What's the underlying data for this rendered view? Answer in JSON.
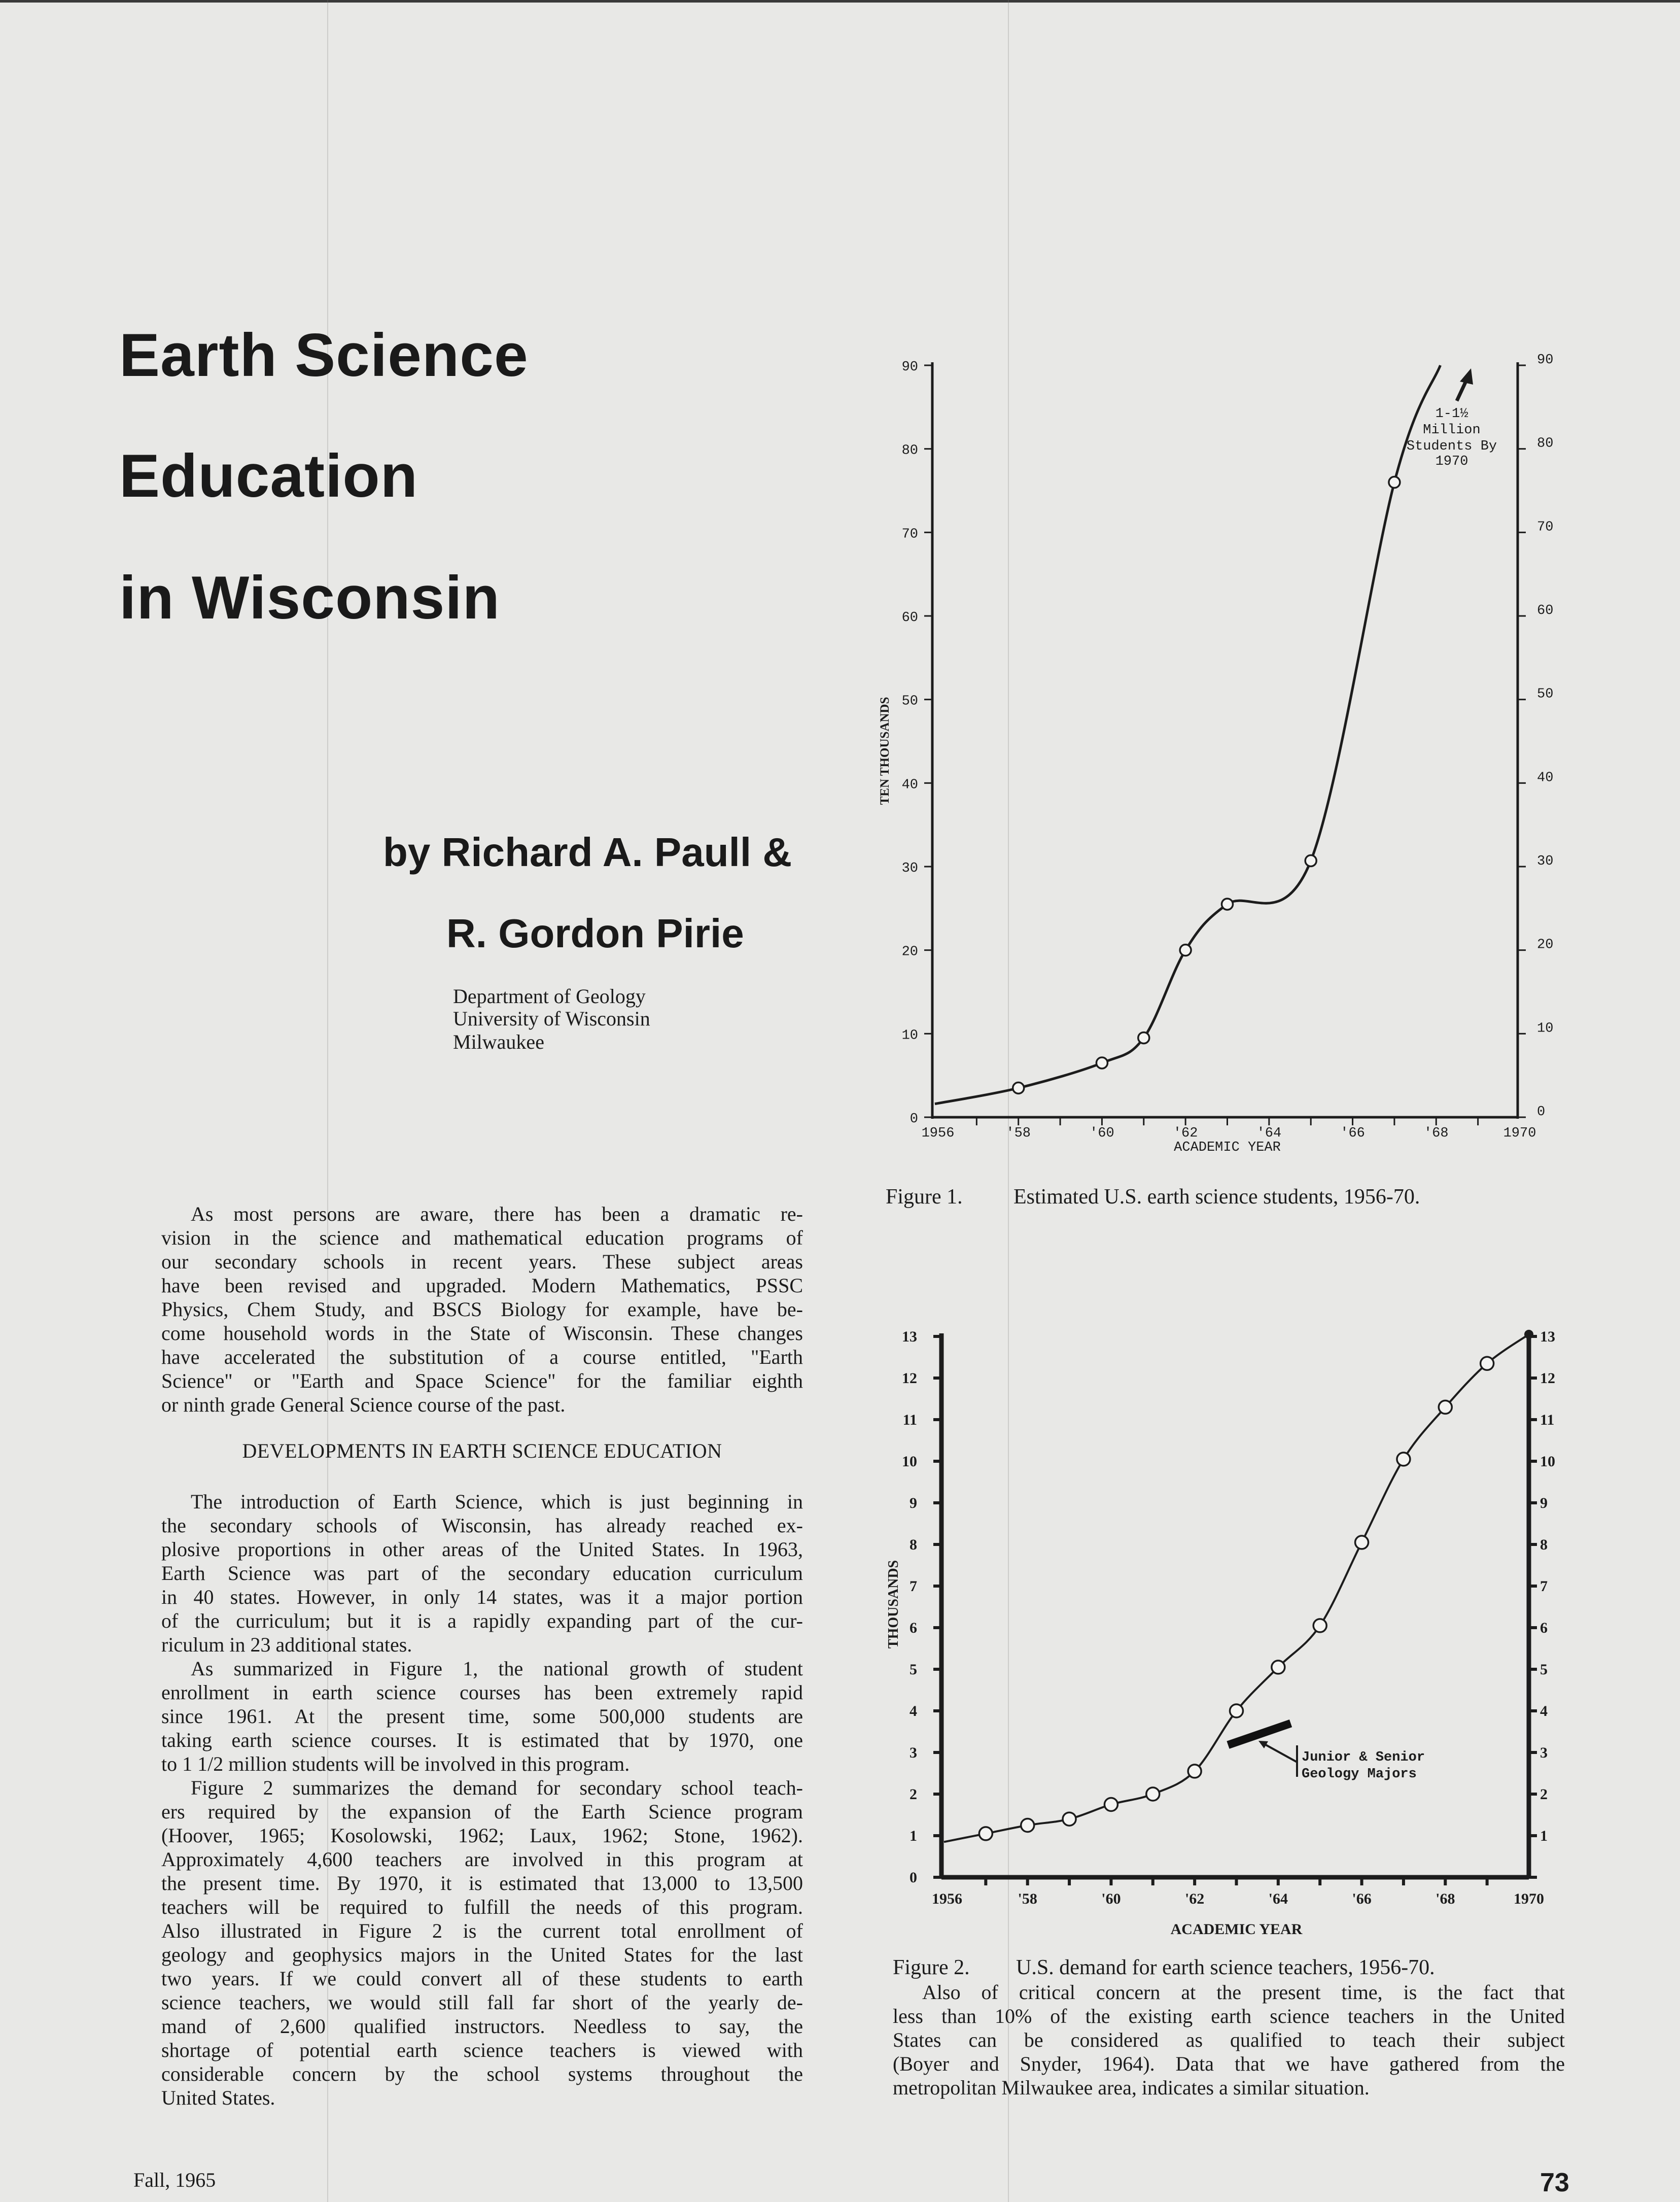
{
  "article": {
    "title_lines": [
      "Earth Science",
      "Education",
      "in Wisconsin"
    ],
    "byline_1": "by Richard A. Paull &",
    "byline_2": "R. Gordon Pirie",
    "affiliation": [
      "Department of Geology",
      "University of Wisconsin",
      "Milwaukee"
    ]
  },
  "body": {
    "intro": {
      "lines": [
        "As most persons are aware, there has been a dramatic re-",
        "vision in the science and mathematical education programs of",
        "our secondary schools in recent years. These subject areas",
        "have been revised and upgraded. Modern Mathematics, PSSC",
        "Physics, Chem Study, and BSCS Biology for example, have be-",
        "come household words in the State of Wisconsin. These changes",
        "have accelerated the substitution of a course entitled, \"Earth",
        "Science\" or \"Earth and Space Science\" for the familiar eighth",
        "or ninth grade General Science course of the past."
      ]
    },
    "section_heading": "DEVELOPMENTS IN EARTH SCIENCE EDUCATION",
    "paragraphs": [
      {
        "lines": [
          "The introduction of Earth Science, which is just beginning in",
          "the secondary schools of Wisconsin, has already reached ex-",
          "plosive proportions in other areas of the United States. In 1963,",
          "Earth Science was part of the secondary education curriculum",
          "in 40 states. However, in only 14 states, was it a major portion",
          "of the curriculum; but it is a rapidly expanding part of the cur-",
          "riculum in 23 additional states."
        ]
      },
      {
        "lines": [
          "As summarized in Figure 1, the national growth of student",
          "enrollment in earth science courses has been extremely rapid",
          "since 1961. At the present time, some 500,000 students are",
          "taking earth science courses. It is estimated that by 1970, one",
          "to 1 1/2 million students will be involved in this program."
        ]
      },
      {
        "lines": [
          "Figure 2 summarizes the demand for secondary school teach-",
          "ers required by the expansion of the Earth Science program",
          "(Hoover, 1965; Kosolowski, 1962; Laux, 1962; Stone, 1962).",
          "Approximately 4,600 teachers are involved in this program at",
          "the present time. By 1970, it is estimated that 13,000 to 13,500",
          "teachers will be required to fulfill the needs of this program.",
          "Also illustrated in Figure 2 is the current total enrollment of",
          "geology and geophysics majors in the United States for the last",
          "two years. If we could convert all of these students to earth",
          "science teachers, we would still fall far short of the yearly de-",
          "mand of 2,600 qualified instructors. Needless to say, the",
          "shortage of potential earth science teachers is viewed with",
          "considerable concern by the school systems throughout the",
          "United States."
        ]
      }
    ],
    "right_paragraph": {
      "lines": [
        "Also of critical concern at the present time, is the fact that",
        "less than 10% of the existing earth science teachers in the United",
        "States can be considered as qualified to teach their subject",
        "(Boyer and Snyder, 1964). Data that we have gathered from the",
        "metropolitan Milwaukee area, indicates a similar situation."
      ]
    }
  },
  "figures": [
    {
      "label": "Figure 1.",
      "caption": "Estimated U.S. earth science students, 1956-70."
    },
    {
      "label": "Figure 2.",
      "caption": "U.S. demand for earth science teachers, 1956-70."
    }
  ],
  "footer": {
    "issue": "Fall, 1965",
    "page_number": "73"
  },
  "chart_data": [
    {
      "type": "line",
      "title": "Estimated U.S. earth science students, 1956-70",
      "xlabel": "ACADEMIC YEAR",
      "ylabel": "TEN THOUSANDS",
      "xlim": [
        1956,
        1970
      ],
      "ylim": [
        0,
        90
      ],
      "x_tick_labels": [
        {
          "year": 1956,
          "label": "1956"
        },
        {
          "year": 1958,
          "label": "'58"
        },
        {
          "year": 1960,
          "label": "'60"
        },
        {
          "year": 1962,
          "label": "'62"
        },
        {
          "year": 1964,
          "label": "'64"
        },
        {
          "year": 1966,
          "label": "'66"
        },
        {
          "year": 1968,
          "label": "'68"
        },
        {
          "year": 1970,
          "label": "1970"
        }
      ],
      "y_ticks_left": [
        "0",
        "10",
        "20",
        "30",
        "40",
        "50",
        "60",
        "70",
        "80",
        "90"
      ],
      "y_ticks_right": [
        "0",
        "10",
        "20",
        "30",
        "40",
        "50",
        "60",
        "70",
        "80",
        "90"
      ],
      "series": [
        {
          "name": "Earth science students (ten thousands)",
          "x": [
            1956,
            1958,
            1960,
            1961,
            1962,
            1963,
            1965,
            1967,
            1968.1
          ],
          "y": [
            1.6,
            3.5,
            6.5,
            9.5,
            20,
            25.5,
            30.7,
            76,
            90
          ],
          "marked": [
            false,
            true,
            true,
            true,
            true,
            true,
            true,
            true,
            false
          ]
        }
      ],
      "annotation": {
        "lines": [
          "1-1½",
          "Million",
          "Students By",
          "1970"
        ]
      },
      "grid": false
    },
    {
      "type": "line",
      "title": "U.S. demand for earth science teachers, 1956-70",
      "xlabel": "ACADEMIC YEAR",
      "ylabel": "THOUSANDS",
      "xlim": [
        1956,
        1970
      ],
      "ylim": [
        0,
        13
      ],
      "x_tick_labels": [
        {
          "year": 1956,
          "label": "1956"
        },
        {
          "year": 1958,
          "label": "'58"
        },
        {
          "year": 1960,
          "label": "'60"
        },
        {
          "year": 1962,
          "label": "'62"
        },
        {
          "year": 1964,
          "label": "'64"
        },
        {
          "year": 1966,
          "label": "'66"
        },
        {
          "year": 1968,
          "label": "'68"
        },
        {
          "year": 1970,
          "label": "1970"
        }
      ],
      "y_ticks_left": [
        "0",
        "1",
        "2",
        "3",
        "4",
        "5",
        "6",
        "7",
        "8",
        "9",
        "10",
        "11",
        "12",
        "13"
      ],
      "y_ticks_right": [
        "",
        "1",
        "2",
        "3",
        "4",
        "5",
        "6",
        "7",
        "8",
        "9",
        "10",
        "11",
        "12",
        "13"
      ],
      "series": [
        {
          "name": "Teacher demand (thousands)",
          "x": [
            1956,
            1957,
            1958,
            1959,
            1960,
            1961,
            1962,
            1963,
            1964,
            1965,
            1966,
            1967,
            1968,
            1969,
            1970
          ],
          "y": [
            0.85,
            1.05,
            1.25,
            1.4,
            1.75,
            2.0,
            2.55,
            4.0,
            5.05,
            6.05,
            8.05,
            10.05,
            11.3,
            12.35,
            13.05
          ],
          "marked": [
            false,
            true,
            true,
            true,
            true,
            true,
            true,
            true,
            true,
            true,
            true,
            true,
            true,
            true,
            false
          ]
        }
      ],
      "geology_majors": {
        "x": [
          1962.8,
          1964.3
        ],
        "y": [
          3.18,
          3.7
        ],
        "label_lines": [
          "Junior & Senior",
          "Geology Majors"
        ]
      },
      "grid": false
    }
  ]
}
